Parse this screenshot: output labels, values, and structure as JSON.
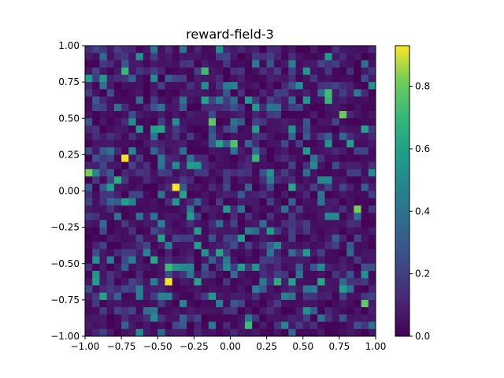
{
  "chart_data": {
    "type": "heatmap",
    "title": "reward-field-3",
    "xlabel": "",
    "ylabel": "",
    "xlim": [
      -1.0,
      1.0
    ],
    "ylim": [
      -1.0,
      1.0
    ],
    "grid": false,
    "colormap": "viridis",
    "colorbar": {
      "min": 0.0,
      "max": 0.93,
      "ticks": [
        "0.0",
        "0.2",
        "0.4",
        "0.6",
        "0.8"
      ],
      "tick_values": [
        0.0,
        0.2,
        0.4,
        0.6,
        0.8
      ]
    },
    "xticks": {
      "labels": [
        "−1.00",
        "−0.75",
        "−0.50",
        "−0.25",
        "0.00",
        "0.25",
        "0.50",
        "0.75",
        "1.00"
      ],
      "values": [
        -1.0,
        -0.75,
        -0.5,
        -0.25,
        0.0,
        0.25,
        0.5,
        0.75,
        1.0
      ]
    },
    "yticks": {
      "labels": [
        "1.00",
        "0.75",
        "0.50",
        "0.25",
        "0.00",
        "−0.25",
        "−0.50",
        "−0.75",
        "−1.00"
      ],
      "values": [
        1.0,
        0.75,
        0.5,
        0.25,
        0.0,
        -0.25,
        -0.5,
        -0.75,
        -1.0
      ]
    },
    "grid_size": [
      40,
      40
    ],
    "hotspots": [
      {
        "x": -0.725,
        "y": 0.225,
        "value": 0.92
      },
      {
        "x": -0.375,
        "y": 0.025,
        "value": 0.93
      },
      {
        "x": -0.425,
        "y": -0.625,
        "value": 0.92
      },
      {
        "x": -0.975,
        "y": 0.125,
        "value": 0.82
      },
      {
        "x": 0.875,
        "y": -0.125,
        "value": 0.82
      },
      {
        "x": -0.125,
        "y": 0.475,
        "value": 0.78
      },
      {
        "x": 0.775,
        "y": 0.525,
        "value": 0.8
      },
      {
        "x": 0.025,
        "y": 0.325,
        "value": 0.75
      },
      {
        "x": 0.175,
        "y": 0.225,
        "value": 0.7
      },
      {
        "x": -0.175,
        "y": 0.825,
        "value": 0.72
      },
      {
        "x": -0.725,
        "y": 0.825,
        "value": 0.7
      },
      {
        "x": 0.675,
        "y": 0.675,
        "value": 0.72
      },
      {
        "x": 0.675,
        "y": 0.625,
        "value": 0.7
      },
      {
        "x": 0.925,
        "y": -0.775,
        "value": 0.78
      },
      {
        "x": 0.125,
        "y": -0.925,
        "value": 0.72
      },
      {
        "x": -0.425,
        "y": -0.525,
        "value": 0.72
      },
      {
        "x": -0.125,
        "y": -0.725,
        "value": 0.55
      },
      {
        "x": 0.325,
        "y": -0.625,
        "value": 0.65
      },
      {
        "x": 0.625,
        "y": -0.625,
        "value": 0.62
      },
      {
        "x": 0.425,
        "y": 0.025,
        "value": 0.62
      },
      {
        "x": -0.775,
        "y": 0.075,
        "value": 0.65
      },
      {
        "x": -0.475,
        "y": -0.325,
        "value": 0.6
      },
      {
        "x": 0.525,
        "y": 0.275,
        "value": 0.58
      },
      {
        "x": -0.625,
        "y": 0.425,
        "value": 0.55
      },
      {
        "x": 0.925,
        "y": 0.425,
        "value": 0.6
      }
    ]
  }
}
